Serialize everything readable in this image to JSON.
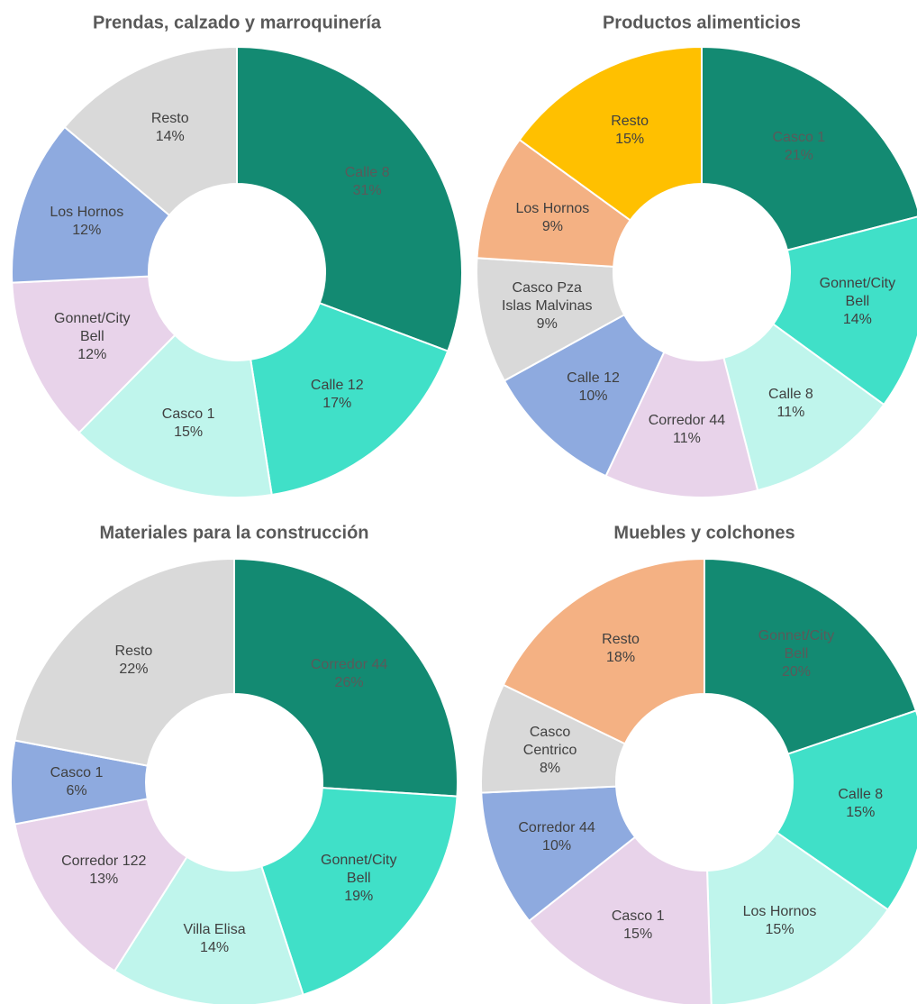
{
  "chart_data": [
    {
      "type": "pie",
      "title": "Prendas, calzado y marroquinería",
      "categories": [
        "Calle 8",
        "Calle 12",
        "Casco 1",
        "Gonnet/City Bell",
        "Los Hornos",
        "Resto"
      ],
      "values": [
        31,
        17,
        15,
        12,
        12,
        14
      ],
      "value_labels": [
        "31%",
        "17%",
        "15%",
        "12%",
        "12%",
        "14%"
      ],
      "colors": [
        "#138a72",
        "#40e0c8",
        "#bff5ec",
        "#e8d3ea",
        "#8eaadf",
        "#d9d9d9"
      ]
    },
    {
      "type": "pie",
      "title": "Productos alimenticios",
      "categories": [
        "Casco 1",
        "Gonnet/City Bell",
        "Calle 8",
        "Corredor 44",
        "Calle 12",
        "Casco Pza Islas Malvinas",
        "Los Hornos",
        "Resto"
      ],
      "values": [
        21,
        14,
        11,
        11,
        10,
        9,
        9,
        15
      ],
      "value_labels": [
        "21%",
        "14%",
        "11%",
        "11%",
        "10%",
        "9%",
        "9%",
        "15%"
      ],
      "colors": [
        "#138a72",
        "#40e0c8",
        "#bff5ec",
        "#e8d3ea",
        "#8eaadf",
        "#d9d9d9",
        "#f4b183",
        "#ffc000"
      ]
    },
    {
      "type": "pie",
      "title": "Materiales para la construcción",
      "categories": [
        "Corredor 44",
        "Gonnet/City Bell",
        "Villa Elisa",
        "Corredor 122",
        "Casco 1",
        "Resto"
      ],
      "values": [
        26,
        19,
        14,
        13,
        6,
        22
      ],
      "value_labels": [
        "26%",
        "19%",
        "14%",
        "13%",
        "6%",
        "22%"
      ],
      "colors": [
        "#138a72",
        "#40e0c8",
        "#bff5ec",
        "#e8d3ea",
        "#8eaadf",
        "#d9d9d9"
      ]
    },
    {
      "type": "pie",
      "title": "Muebles y colchones",
      "categories": [
        "Gonnet/City Bell",
        "Calle 8",
        "Los Hornos",
        "Casco 1",
        "Corredor 44",
        "Casco Centrico",
        "Resto"
      ],
      "values": [
        20,
        15,
        15,
        15,
        10,
        8,
        18
      ],
      "value_labels": [
        "20%",
        "15%",
        "15%",
        "15%",
        "10%",
        "8%",
        "18%"
      ],
      "colors": [
        "#138a72",
        "#40e0c8",
        "#bff5ec",
        "#e8d3ea",
        "#8eaadf",
        "#d9d9d9",
        "#f4b183"
      ]
    }
  ]
}
